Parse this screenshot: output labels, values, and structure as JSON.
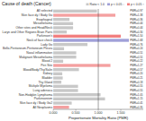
{
  "chart_data": {
    "type": "bar",
    "orientation": "horizontal",
    "title": "Cause of death (Cancer)",
    "x_label": "Proportionate Mortality Ratio (PMR)",
    "categories": [
      "All selected",
      "Skin face dy / Body Go",
      "Esophageal",
      "Mesothelioma",
      "Other sites and Head/Neck",
      "Laryn and Other Regions Brain Parts",
      "Parkinson's",
      "Neck of face check",
      "Lady Go",
      "Bello-Peritoneum-Peritoneum Pleura",
      "Nasal inflammation",
      "Malignant Mesothelioma",
      "Blood 2",
      "Peri Site",
      "Blood/Body/Thy/Salin",
      "Kidney",
      "Bladder",
      "Thy Gland",
      "Multiple Myeloma",
      "Lung adenoca",
      "Non-Hodgkin Lymphoma",
      "Parkinsonism",
      "Skin face dy / Body Go2",
      "All Neoplasms"
    ],
    "values": [
      0.97,
      1.38,
      0.36,
      0.44,
      0.44,
      0.3,
      1.5,
      1.68,
      0.76,
      0.24,
      0.51,
      0.51,
      0.22,
      1.27,
      0.57,
      0.2,
      0.21,
      0.18,
      0.55,
      0.55,
      1.05,
      1.15,
      0.41,
      0.35
    ],
    "colors": [
      "#c8c8c8",
      "#f4a0a0",
      "#c8c8c8",
      "#c8c8c8",
      "#c8c8c8",
      "#c8c8c8",
      "#f28080",
      "#a0a0d8",
      "#c8c8c8",
      "#c8c8c8",
      "#c8c8c8",
      "#c8c8c8",
      "#c8c8c8",
      "#f4a0a0",
      "#c8c8c8",
      "#c8c8c8",
      "#c8c8c8",
      "#c8c8c8",
      "#c8c8c8",
      "#c8c8c8",
      "#c8c8c8",
      "#c8c8c8",
      "#c8c8c8",
      "#f4a0a0"
    ],
    "data_labels": true,
    "value_labels": [
      "PMR=0.97",
      "PMR=1.38",
      "PMR=0.36",
      "PMR=0.44",
      "PMR=0.44",
      "PMR=0.30",
      "PMR=1.50",
      "PMR=1.68",
      "PMR=0.76",
      "PMR=0.24",
      "PMR=0.51",
      "PMR=0.51",
      "PMR=0.22",
      "PMR=1.27",
      "PMR=0.57",
      "PMR=0.20",
      "PMR=0.21",
      "PMR=0.18",
      "PMR=0.55",
      "PMR=0.55",
      "PMR=1.05",
      "PMR=1.15",
      "PMR=0.41",
      "PMR=0.35"
    ],
    "reference_line": 1.0,
    "xlim": [
      0,
      2.0
    ],
    "xticks": [
      {
        "value": 0.0,
        "label": "0.000"
      },
      {
        "value": 0.5,
        "label": "0.500"
      },
      {
        "value": 1.0,
        "label": "1.000"
      },
      {
        "value": 1.5,
        "label": "1.500"
      }
    ],
    "grid": false,
    "legend": "upper right",
    "legend_entries": [
      {
        "label": "Ratio < 1.0",
        "color": "#c8c8c8"
      },
      {
        "label": "p < 0.05 ↓",
        "color": "#a0a0d8"
      },
      {
        "label": "p < 0.05 ↑",
        "color": "#f28080"
      }
    ]
  }
}
